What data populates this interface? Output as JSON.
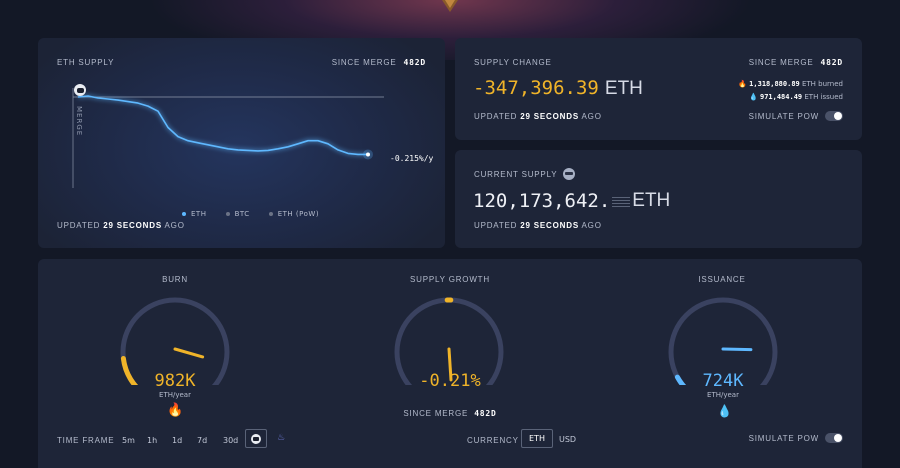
{
  "eth_supply": {
    "title": "ETH SUPPLY",
    "since_merge_label": "SINCE MERGE",
    "since_merge_days": "482d",
    "merge_label": "MERGE",
    "end_value_label": "-0.215%/y",
    "legend": [
      "ETH",
      "BTC",
      "ETH (PoW)"
    ],
    "updated_prefix": "UPDATED",
    "updated_value": "29 SECONDS",
    "updated_suffix": "AGO",
    "chart_data": {
      "type": "line",
      "title": "ETH SUPPLY",
      "xlabel": "",
      "ylabel": "",
      "legend_position": "bottom",
      "series": [
        {
          "name": "ETH",
          "color": "#5eb8ff",
          "x": [
            0,
            10,
            20,
            30,
            40,
            50,
            60,
            70,
            80,
            90,
            100,
            110,
            120,
            130,
            140,
            150,
            160,
            170,
            180,
            190,
            200,
            210,
            220,
            230,
            240,
            250,
            260,
            270,
            280,
            290
          ],
          "y": [
            100,
            101,
            99,
            98,
            97,
            95.5,
            94,
            91,
            86,
            70,
            61,
            57,
            55,
            53,
            51,
            49,
            48,
            47.5,
            47,
            47.5,
            49,
            51,
            54,
            57,
            57,
            54,
            48,
            44.5,
            43.5,
            43.5
          ]
        }
      ],
      "annotations": [
        "MERGE",
        "-0.215%/y"
      ]
    }
  },
  "supply_change": {
    "title": "SUPPLY CHANGE",
    "since_merge_label": "SINCE MERGE",
    "since_merge_days": "482d",
    "value": "-347,396.39",
    "unit": "ETH",
    "burned_value": "1,318,880.89",
    "burned_label": "ETH burned",
    "issued_value": "971,484.49",
    "issued_label": "ETH issued",
    "updated_prefix": "UPDATED",
    "updated_value": "29 SECONDS",
    "updated_suffix": "AGO",
    "simulate_label": "SIMULATE PoW"
  },
  "current_supply": {
    "title": "CURRENT SUPPLY",
    "integer_part": "120,173,642.",
    "unit": "ETH",
    "updated_prefix": "UPDATED",
    "updated_value": "29 SECONDS",
    "updated_suffix": "AGO"
  },
  "gauges": {
    "burn": {
      "title": "BURN",
      "value": "982K",
      "unit": "ETH/year",
      "color": "#f0b429",
      "fraction": 0.14
    },
    "supply_growth": {
      "title": "SUPPLY GROWTH",
      "value": "-0.21%",
      "unit": "",
      "color": "#f0b429",
      "fraction": 0.5,
      "since_merge_label": "SINCE MERGE",
      "since_merge_days": "482d"
    },
    "issuance": {
      "title": "ISSUANCE",
      "value": "724K",
      "unit": "ETH/year",
      "color": "#5eb8ff",
      "fraction": 0.06
    }
  },
  "controls": {
    "time_frame_label": "TIME FRAME",
    "time_frames": [
      "5m",
      "1h",
      "1d",
      "7d",
      "30d"
    ],
    "currency_label": "CURRENCY",
    "currencies": [
      "ETH",
      "USD"
    ],
    "selected_currency": "ETH",
    "simulate_label": "SIMULATE PoW"
  },
  "colors": {
    "accent_orange": "#f0b429",
    "accent_blue": "#5eb8ff",
    "card_bg": "#1e2538",
    "page_bg": "#131826"
  }
}
